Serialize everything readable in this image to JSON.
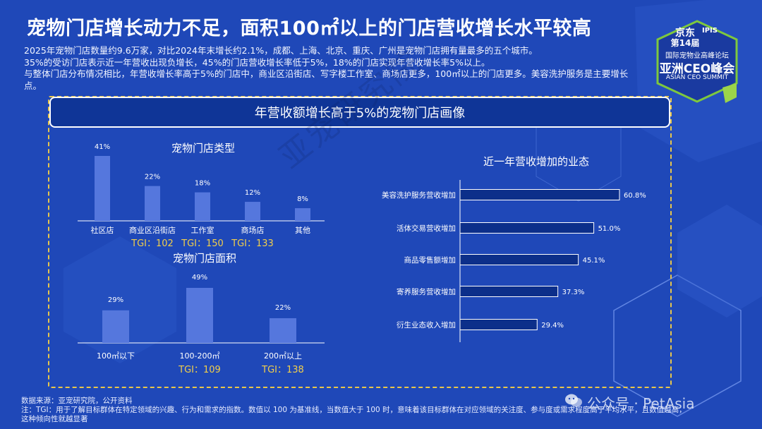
{
  "title": "宠物门店增长动力不足，面积100㎡以上的门店营收增长水平较高",
  "description": [
    "2025年宠物门店数量约9.6万家，对比2024年末增长约2.1%，成都、上海、北京、重庆、广州是宠物门店拥有量最多的五个城市。",
    "35%的受访门店表示近一年营收出现负增长，45%的门店营收增长率低于5%，18%的门店实现年营收增长率5%以上。",
    "与整体门店分布情况相比，年营收增长率高于5%的门店中，商业区沿街店、写字楼工作室、商场店更多，100㎡以上的门店更多。美容洗护服务是主要增长点。"
  ],
  "badge": {
    "brand": "京东",
    "ipis": "IPIS",
    "edition": "第14届",
    "forum": "国际宠物业高峰论坛",
    "summit_cn": "亚洲CEO峰会",
    "summit_en": "ASIAN CEO SUMMIT"
  },
  "banner": "年营收额增长高于5%的宠物门店画像",
  "watermark": "亚宠研究院",
  "wechat": "公众号 · PetAsia",
  "source": {
    "line1": "数据来源：亚宠研究院，公开资料",
    "line2": "注：TGI：用于了解目标群体在特定领域的兴趣、行为和需求的指数。数值以 100 为基准线，当数值大于 100 时，意味着该目标群体在对应领域的关注度、参与度或需求程度高于平均水平，且数值越高，",
    "line3": "这种倾向性就越显著"
  },
  "colors": {
    "background": "#1f48b8",
    "bar_vertical": "#5577dd",
    "bar_horizontal": "#0c2f8a",
    "tgi": "#f2cf4a",
    "frame": "#e8c64a"
  },
  "chart_data": [
    {
      "type": "bar",
      "title": "宠物门店类型",
      "categories": [
        "社区店",
        "商业区沿街店",
        "工作室",
        "商场店",
        "其他"
      ],
      "values": [
        41,
        22,
        18,
        12,
        8
      ],
      "value_labels": [
        "41%",
        "22%",
        "18%",
        "12%",
        "8%"
      ],
      "tgi_labels": [
        "",
        "TGI：102",
        "TGI：150",
        "TGI：133",
        ""
      ]
    },
    {
      "type": "bar",
      "title": "宠物门店面积",
      "categories": [
        "100㎡以下",
        "100-200㎡",
        "200㎡以上"
      ],
      "values": [
        29,
        49,
        22
      ],
      "value_labels": [
        "29%",
        "49%",
        "22%"
      ],
      "tgi_labels": [
        "",
        "TGI：109",
        "TGI：138"
      ]
    },
    {
      "type": "bar",
      "orientation": "horizontal",
      "title": "近一年营收增加的业态",
      "categories": [
        "美容洗护服务营收增加",
        "活体交易营收增加",
        "商品零售额增加",
        "寄养服务营收增加",
        "衍生业态收入增加"
      ],
      "values": [
        60.8,
        51.0,
        45.1,
        37.3,
        29.4
      ],
      "value_labels": [
        "60.8%",
        "51.0%",
        "45.1%",
        "37.3%",
        "29.4%"
      ]
    }
  ]
}
